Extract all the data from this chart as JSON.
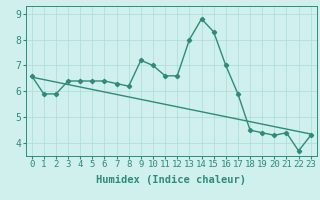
{
  "xlabel": "Humidex (Indice chaleur)",
  "line1_x": [
    0,
    1,
    2,
    3,
    4,
    5,
    6,
    7,
    8,
    9,
    10,
    11,
    12,
    13,
    14,
    15,
    16,
    17,
    18,
    19,
    20,
    21,
    22,
    23
  ],
  "line1_y": [
    6.6,
    5.9,
    5.9,
    6.4,
    6.4,
    6.4,
    6.4,
    6.3,
    6.2,
    7.2,
    7.0,
    6.6,
    6.6,
    8.0,
    8.8,
    8.3,
    7.0,
    5.9,
    4.5,
    4.4,
    4.3,
    4.4,
    3.7,
    4.3
  ],
  "line2_x": [
    0,
    23
  ],
  "line2_y": [
    6.55,
    4.35
  ],
  "line_color": "#2e8b7a",
  "bg_color": "#cff0ec",
  "grid_color": "#aaddda",
  "ylim": [
    3.5,
    9.3
  ],
  "xlim": [
    -0.5,
    23.5
  ],
  "xticks": [
    0,
    1,
    2,
    3,
    4,
    5,
    6,
    7,
    8,
    9,
    10,
    11,
    12,
    13,
    14,
    15,
    16,
    17,
    18,
    19,
    20,
    21,
    22,
    23
  ],
  "yticks": [
    4,
    5,
    6,
    7,
    8,
    9
  ],
  "marker": "D",
  "markersize": 2.2,
  "linewidth": 1.0,
  "xlabel_fontsize": 7.5,
  "tick_fontsize": 6.5
}
